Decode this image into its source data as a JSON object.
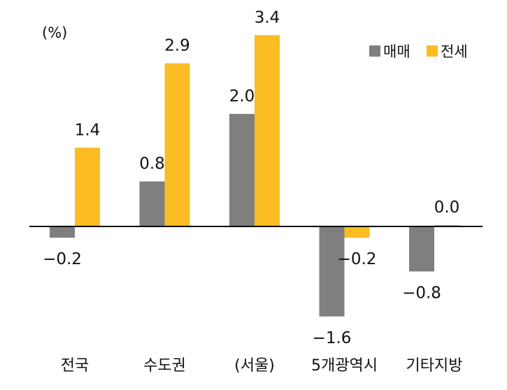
{
  "chart_data": {
    "type": "bar",
    "unit_label": "(%)",
    "categories": [
      "전국",
      "수도권",
      "(서울)",
      "5개광역시",
      "기타지방"
    ],
    "series": [
      {
        "name": "매매",
        "color": "#7f7f7f",
        "values": [
          -0.2,
          0.8,
          2.0,
          -1.6,
          -0.8
        ],
        "labels": [
          "−0.2",
          "0.8",
          "2.0",
          "−1.6",
          "−0.8"
        ]
      },
      {
        "name": "전세",
        "color": "#fbbc24",
        "values": [
          1.4,
          2.9,
          3.4,
          -0.2,
          0.0
        ],
        "labels": [
          "1.4",
          "2.9",
          "3.4",
          "−0.2",
          "0.0"
        ]
      }
    ],
    "ylim": [
      -2.0,
      3.5
    ],
    "legend_position": "top-right",
    "grid": false
  }
}
